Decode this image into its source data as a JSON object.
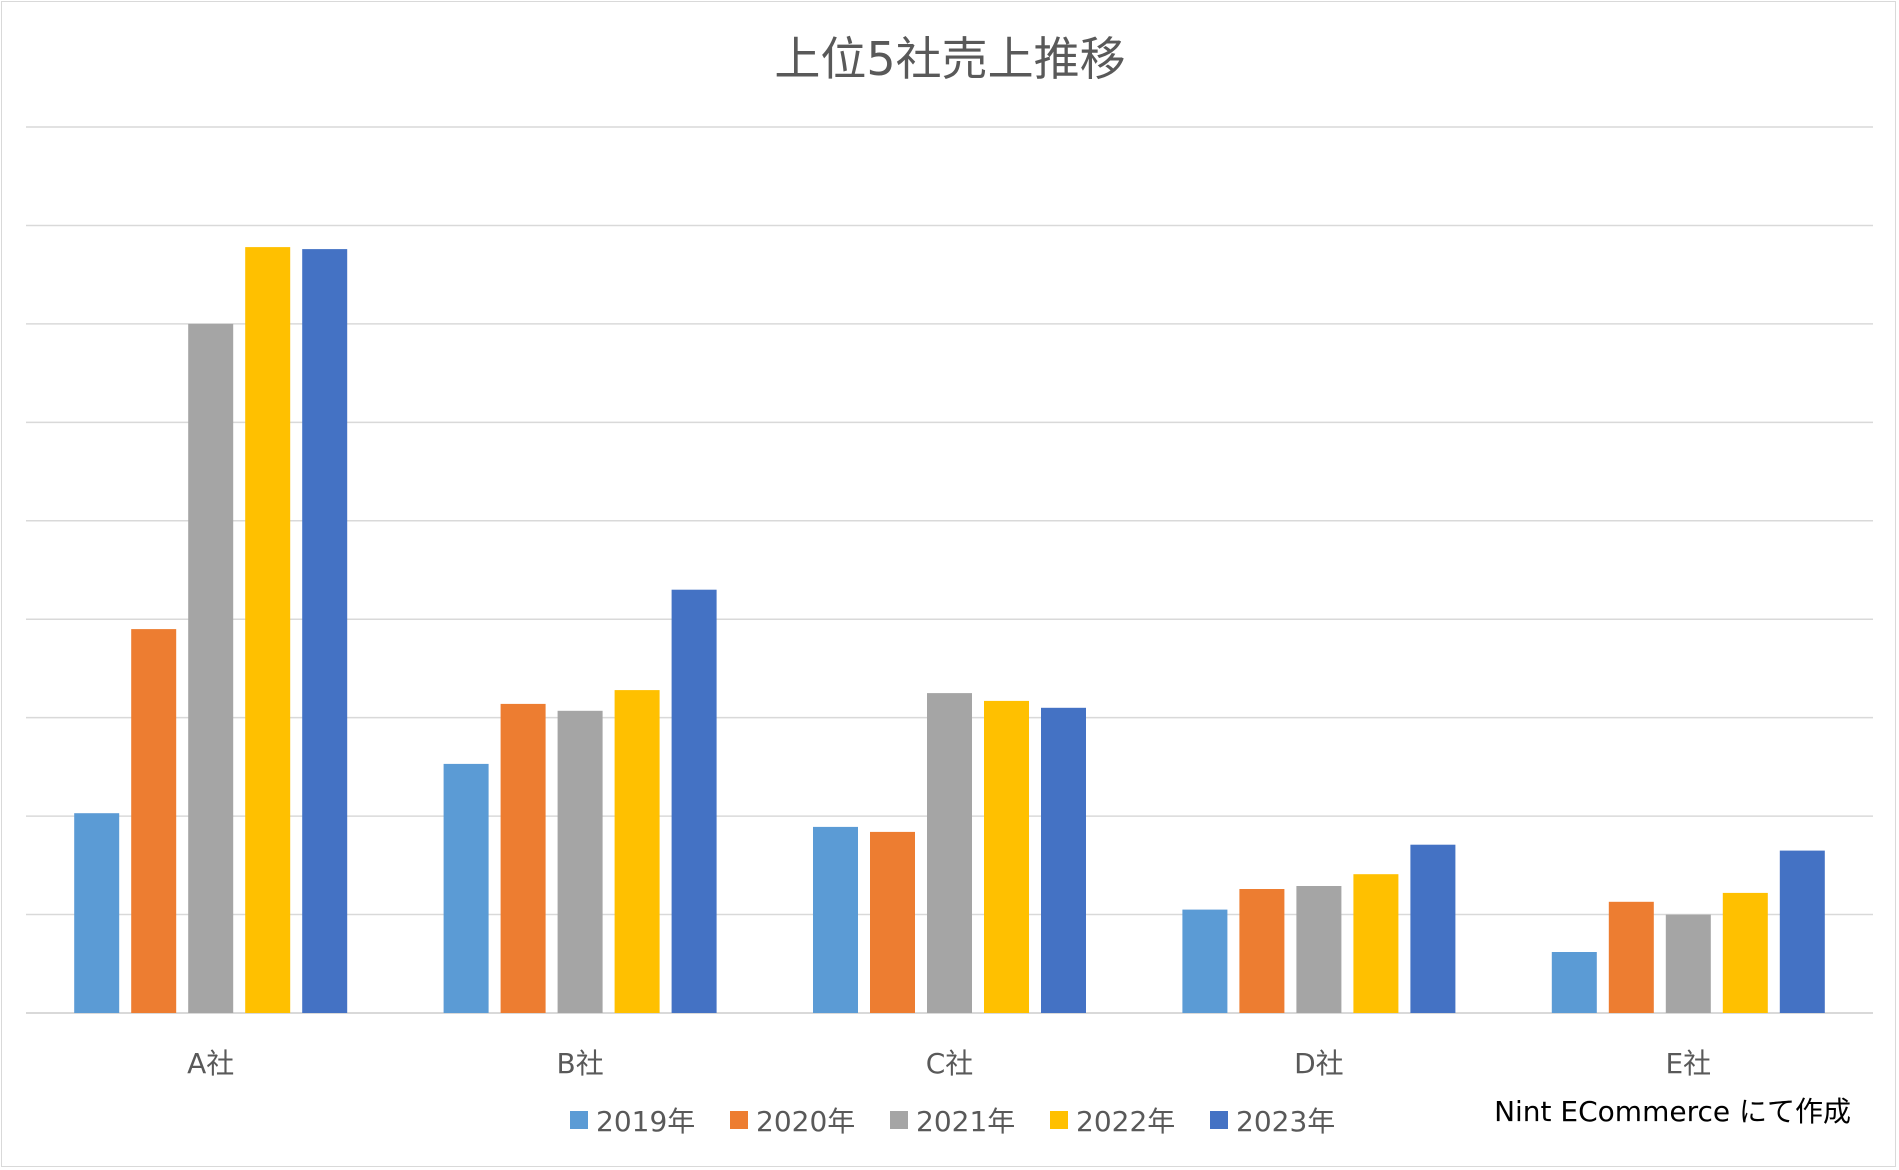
{
  "chart_data": {
    "type": "bar",
    "title": "上位5社売上推移",
    "xlabel": "",
    "ylabel": "",
    "categories": [
      "A社",
      "B社",
      "C社",
      "D社",
      "E社"
    ],
    "ylim": [
      0,
      9
    ],
    "y_tick_labels_shown": false,
    "grid": true,
    "legend_position": "bottom",
    "series": [
      {
        "name": "2019年",
        "color": "#5B9BD5",
        "values": [
          2.03,
          2.53,
          1.89,
          1.05,
          0.62
        ]
      },
      {
        "name": "2020年",
        "color": "#ED7D31",
        "values": [
          3.9,
          3.14,
          1.84,
          1.26,
          1.13
        ]
      },
      {
        "name": "2021年",
        "color": "#A5A5A5",
        "values": [
          7.0,
          3.07,
          3.25,
          1.29,
          1.0
        ]
      },
      {
        "name": "2022年",
        "color": "#FFC000",
        "values": [
          7.78,
          3.28,
          3.17,
          1.41,
          1.22
        ]
      },
      {
        "name": "2023年",
        "color": "#4472C4",
        "values": [
          7.76,
          4.3,
          3.1,
          1.71,
          1.65
        ]
      }
    ],
    "annotation": "Nint ECommerce にて作成"
  },
  "colors": {
    "gridline": "#d9d9d9",
    "text": "#595959",
    "frame": "#d9d9d9"
  }
}
